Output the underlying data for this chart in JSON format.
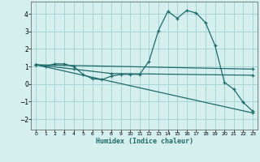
{
  "xlabel": "Humidex (Indice chaleur)",
  "bg_color": "#d5eeee",
  "grid_color": "#a8d4d4",
  "line_color": "#1e6b6b",
  "xlim": [
    -0.5,
    23.5
  ],
  "ylim": [
    -2.6,
    4.7
  ],
  "yticks": [
    -2,
    -1,
    0,
    1,
    2,
    3,
    4
  ],
  "xticks": [
    0,
    1,
    2,
    3,
    4,
    5,
    6,
    7,
    8,
    9,
    10,
    11,
    12,
    13,
    14,
    15,
    16,
    17,
    18,
    19,
    20,
    21,
    22,
    23
  ],
  "line1_x": [
    0,
    1,
    2,
    3,
    4,
    5,
    6,
    7,
    8,
    9,
    10,
    11,
    12,
    13,
    14,
    15,
    16,
    17,
    18,
    19,
    20,
    21,
    22,
    23
  ],
  "line1_y": [
    1.1,
    1.0,
    1.15,
    1.15,
    1.0,
    0.55,
    0.3,
    0.25,
    0.45,
    0.55,
    0.55,
    0.55,
    1.3,
    3.05,
    4.15,
    3.75,
    4.2,
    4.05,
    3.5,
    2.2,
    0.1,
    -0.3,
    -1.05,
    -1.55
  ],
  "line2_x": [
    0,
    23
  ],
  "line2_y": [
    1.1,
    0.85
  ],
  "line3_x": [
    0,
    23
  ],
  "line3_y": [
    1.1,
    -1.65
  ],
  "line4_x": [
    0,
    4,
    8,
    23
  ],
  "line4_y": [
    1.1,
    0.85,
    0.6,
    0.5
  ]
}
